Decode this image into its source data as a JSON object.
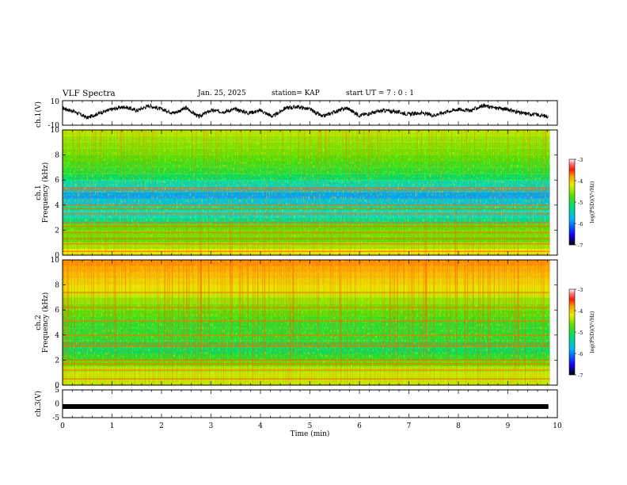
{
  "header": {
    "title": "VLF Spectra",
    "date": "Jan. 25, 2025",
    "station": "station= KAP",
    "start": "start UT = 7 : 0 : 1"
  },
  "colors": {
    "trace": "#000000",
    "colormap": [
      "#000000",
      "#1a00ff",
      "#00b4ff",
      "#00e070",
      "#2ee02e",
      "#d8f000",
      "#ffb000",
      "#ff2000",
      "#ff7070",
      "#ffffff"
    ]
  },
  "chart_data": [
    {
      "id": "ch1_waveform",
      "type": "line",
      "ylabel": "ch.1(V)",
      "ylim": [
        -10,
        10
      ],
      "yticks": [
        "10",
        "-10"
      ],
      "xlim": [
        0,
        10
      ],
      "x": [
        0,
        0.25,
        0.5,
        0.75,
        1.0,
        1.25,
        1.5,
        1.75,
        2.0,
        2.25,
        2.5,
        2.75,
        3.0,
        3.25,
        3.5,
        3.75,
        4.0,
        4.25,
        4.5,
        4.75,
        5.0,
        5.25,
        5.5,
        5.75,
        6.0,
        6.25,
        6.5,
        6.75,
        7.0,
        7.25,
        7.5,
        7.75,
        8.0,
        8.25,
        8.5,
        8.75,
        9.0,
        9.25,
        9.5,
        9.82
      ],
      "values": [
        4,
        1,
        -4,
        0,
        3,
        5,
        2,
        6,
        3,
        0,
        4,
        -3,
        2,
        1,
        3,
        0,
        2,
        -3,
        4,
        5,
        3,
        -3,
        1,
        4,
        -2,
        0,
        2,
        1,
        -1,
        0,
        -2,
        1,
        3,
        2,
        6,
        4,
        3,
        0,
        -1,
        -3
      ]
    },
    {
      "id": "ch1_spectrogram",
      "type": "heatmap",
      "ylabel": "ch.1",
      "ylabel2": "Frequency (kHz)",
      "ylim": [
        0,
        10
      ],
      "yticks": [
        "0",
        "2",
        "4",
        "6",
        "8",
        "10"
      ],
      "xlim": [
        0,
        9.85
      ],
      "colorbar": {
        "label": "log(PSD)(V²/Hz)",
        "range": [
          -7,
          -3
        ],
        "ticks": [
          "-3",
          "-4",
          "-5",
          "-6",
          "-7"
        ]
      },
      "band_freqs_khz": [
        0,
        0.5,
        1.0,
        1.5,
        2.0,
        2.5,
        3.0,
        3.5,
        4.0,
        4.5,
        5.0,
        5.5,
        6.0,
        6.5,
        7.0,
        7.5,
        8.0,
        8.5,
        9.0,
        9.5,
        10.0
      ],
      "band_log_psd": [
        -4.2,
        -4.4,
        -4.6,
        -4.8,
        -4.5,
        -5.0,
        -5.6,
        -5.4,
        -5.3,
        -6.0,
        -5.8,
        -5.5,
        -5.3,
        -5.0,
        -4.9,
        -4.8,
        -4.7,
        -4.6,
        -4.6,
        -4.5,
        -4.4
      ],
      "lines_khz": [
        0.3,
        0.9,
        1.3,
        1.8,
        2.3,
        2.6,
        3.3,
        3.7,
        4.0,
        5.2,
        5.4
      ]
    },
    {
      "id": "ch2_spectrogram",
      "type": "heatmap",
      "ylabel": "ch.2",
      "ylabel2": "Frequency (kHz)",
      "ylim": [
        0,
        10
      ],
      "yticks": [
        "0",
        "2",
        "4",
        "6",
        "8",
        "10"
      ],
      "xlim": [
        0,
        9.85
      ],
      "colorbar": {
        "label": "log(PSD)(V²/Hz)",
        "range": [
          -7,
          -3
        ],
        "ticks": [
          "-3",
          "-4",
          "-5",
          "-6",
          "-7"
        ]
      },
      "band_freqs_khz": [
        0,
        0.5,
        1.0,
        1.5,
        2.0,
        2.5,
        3.0,
        3.5,
        4.0,
        4.5,
        5.0,
        5.5,
        6.0,
        6.5,
        7.0,
        7.5,
        8.0,
        8.5,
        9.0,
        9.5,
        10.0
      ],
      "band_log_psd": [
        -4.3,
        -4.5,
        -4.3,
        -4.6,
        -4.8,
        -5.1,
        -5.2,
        -5.0,
        -4.9,
        -5.0,
        -4.9,
        -4.8,
        -4.7,
        -4.6,
        -4.5,
        -4.3,
        -4.2,
        -4.1,
        -4.0,
        -3.9,
        -3.8
      ],
      "lines_khz": [
        0.5,
        1.2,
        1.7,
        2.0,
        3.1,
        3.3,
        4.0,
        5.1,
        6.2,
        7.4
      ]
    },
    {
      "id": "ch3_waveform",
      "type": "line",
      "ylabel": "ch.3(V)",
      "ylim": [
        -5,
        5
      ],
      "yticks": [
        "5",
        "0",
        "-5"
      ],
      "xlim": [
        0,
        10
      ],
      "x": [
        0,
        9.82
      ],
      "values": [
        -1,
        -1
      ],
      "xlabel": "Time (min)",
      "xticks": [
        "0",
        "1",
        "2",
        "3",
        "4",
        "5",
        "6",
        "7",
        "8",
        "9",
        "10"
      ]
    }
  ]
}
